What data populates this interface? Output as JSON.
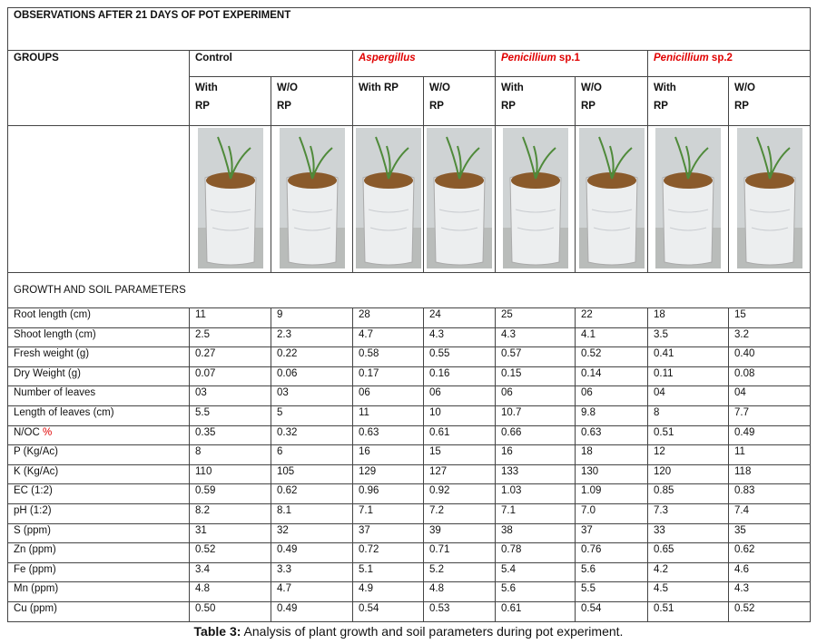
{
  "table": {
    "title": "OBSERVATIONS AFTER 21 DAYS OF POT EXPERIMENT",
    "groups_label": "GROUPS",
    "groups": [
      {
        "italic": "",
        "rest": "Control"
      },
      {
        "italic": "Aspergillus",
        "rest": ""
      },
      {
        "italic": "Penicillium",
        "rest": "sp.1"
      },
      {
        "italic": "Penicillium",
        "rest": "sp.2"
      }
    ],
    "subheaders": [
      [
        "With",
        "RP"
      ],
      [
        "W/O",
        "RP"
      ],
      [
        "With RP"
      ],
      [
        "W/O",
        "RP"
      ],
      [
        "With",
        "RP"
      ],
      [
        "W/O",
        "RP"
      ],
      [
        "With",
        "RP"
      ],
      [
        "W/O",
        "RP"
      ]
    ],
    "section_label": "GROWTH AND SOIL PARAMETERS",
    "rows": [
      {
        "label": [
          "Root length (cm)"
        ],
        "values": [
          "11",
          "9",
          "28",
          "24",
          "25",
          "22",
          "18",
          "15"
        ]
      },
      {
        "label": [
          "Shoot length (cm)"
        ],
        "values": [
          "2.5",
          "2.3",
          "4.7",
          "4.3",
          "4.3",
          "4.1",
          "3.5",
          "3.2"
        ]
      },
      {
        "label": [
          "Fresh weight (g)"
        ],
        "values": [
          "0.27",
          "0.22",
          "0.58",
          "0.55",
          "0.57",
          "0.52",
          "0.41",
          "0.40"
        ]
      },
      {
        "label": [
          "Dry Weight (g)"
        ],
        "values": [
          "0.07",
          "0.06",
          "0.17",
          "0.16",
          "0.15",
          "0.14",
          "0.11",
          "0.08"
        ]
      },
      {
        "label": [
          "Number of leaves"
        ],
        "values": [
          "03",
          "03",
          "06",
          "06",
          "06",
          "06",
          "04",
          "04"
        ]
      },
      {
        "label": [
          "Length of leaves (cm)"
        ],
        "values": [
          "5.5",
          "5",
          "11",
          "10",
          "10.7",
          "9.8",
          "8",
          "7.7"
        ]
      },
      {
        "label": [
          "N/OC",
          "%"
        ],
        "values": [
          "0.35",
          "0.32",
          "0.63",
          "0.61",
          "0.66",
          "0.63",
          "0.51",
          "0.49"
        ]
      },
      {
        "label": [
          "P (Kg/Ac)"
        ],
        "values": [
          "8",
          "6",
          "16",
          "15",
          "16",
          "18",
          "12",
          "11"
        ]
      },
      {
        "label": [
          "K (Kg/Ac)"
        ],
        "values": [
          "110",
          "105",
          "129",
          "127",
          "133",
          "130",
          "120",
          "118"
        ]
      },
      {
        "label": [
          "EC (1:2)"
        ],
        "values": [
          "0.59",
          "0.62",
          "0.96",
          "0.92",
          "1.03",
          "1.09",
          "0.85",
          "0.83"
        ]
      },
      {
        "label": [
          "pH (1:2)"
        ],
        "values": [
          "8.2",
          "8.1",
          "7.1",
          "7.2",
          "7.1",
          "7.0",
          "7.3",
          "7.4"
        ]
      },
      {
        "label": [
          "S (ppm)"
        ],
        "values": [
          "31",
          "32",
          "37",
          "39",
          "38",
          "37",
          "33",
          "35"
        ]
      },
      {
        "label": [
          "Zn (ppm)"
        ],
        "values": [
          "0.52",
          "0.49",
          "0.72",
          "0.71",
          "0.78",
          "0.76",
          "0.65",
          "0.62"
        ]
      },
      {
        "label": [
          "Fe (ppm)"
        ],
        "values": [
          "3.4",
          "3.3",
          "5.1",
          "5.2",
          "5.4",
          "5.6",
          "4.2",
          "4.6"
        ]
      },
      {
        "label": [
          "Mn (ppm)"
        ],
        "values": [
          "4.8",
          "4.7",
          "4.9",
          "4.8",
          "5.6",
          "5.5",
          "4.5",
          "4.3"
        ]
      },
      {
        "label": [
          "Cu (ppm)"
        ],
        "values": [
          "0.50",
          "0.49",
          "0.54",
          "0.53",
          "0.61",
          "0.54",
          "0.51",
          "0.52"
        ]
      }
    ]
  },
  "caption": {
    "label": "Table 3:",
    "text": "Analysis of plant growth and soil parameters during pot experiment."
  }
}
